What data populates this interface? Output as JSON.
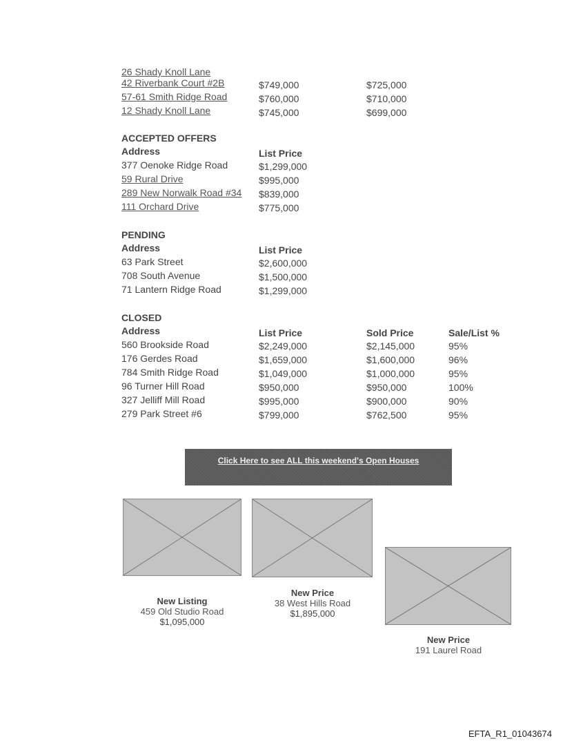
{
  "top_rows": [
    {
      "address": "26 Shady Knoll Lane",
      "link": true,
      "list": "",
      "sold": ""
    },
    {
      "address": "42 Riverbank Court #2B",
      "link": true,
      "list": "$749,000",
      "sold": "$725,000"
    },
    {
      "address": "57-61 Smith Ridge Road",
      "link": true,
      "list": "$760,000",
      "sold": "$710,000"
    },
    {
      "address": "12 Shady Knoll Lane",
      "link": true,
      "list": "$745,000",
      "sold": "$699,000"
    }
  ],
  "accepted": {
    "title": "ACCEPTED OFFERS",
    "headers": [
      "Address",
      "List Price"
    ],
    "rows": [
      {
        "address": "377 Oenoke Ridge Road",
        "link": false,
        "list": "$1,299,000"
      },
      {
        "address": "59 Rural Drive",
        "link": true,
        "list": "$995,000"
      },
      {
        "address": "289 New Norwalk Road #34",
        "link": true,
        "list": "$839,000"
      },
      {
        "address": "111 Orchard Drive",
        "link": true,
        "list": "$775,000"
      }
    ]
  },
  "pending": {
    "title": "PENDING",
    "headers": [
      "Address",
      "List Price"
    ],
    "rows": [
      {
        "address": "63 Park Street",
        "link": false,
        "list": "$2,600,000"
      },
      {
        "address": "708 South Avenue",
        "link": false,
        "list": "$1,500,000"
      },
      {
        "address": "71 Lantern Ridge Road",
        "link": false,
        "list": "$1,299,000"
      }
    ]
  },
  "closed": {
    "title": "CLOSED",
    "headers": [
      "Address",
      "List Price",
      "Sold Price",
      "Sale/List %"
    ],
    "rows": [
      {
        "address": "560 Brookside Road",
        "link": false,
        "list": "$2,249,000",
        "sold": "$2,145,000",
        "pct": "95%"
      },
      {
        "address": "176 Gerdes Road",
        "link": false,
        "list": "$1,659,000",
        "sold": "$1,600,000",
        "pct": "96%"
      },
      {
        "address": "784 Smith Ridge Road",
        "link": false,
        "list": "$1,049,000",
        "sold": "$1,000,000",
        "pct": "95%"
      },
      {
        "address": "96 Turner Hill Road",
        "link": false,
        "list": "$950,000",
        "sold": "$950,000",
        "pct": "100%"
      },
      {
        "address": "327 Jelliff Mill Road",
        "link": false,
        "list": "$995,000",
        "sold": "$900,000",
        "pct": "90%"
      },
      {
        "address": "279 Park Street #6",
        "link": false,
        "list": "$799,000",
        "sold": "$762,500",
        "pct": "95%"
      }
    ]
  },
  "open_houses_button": "Click Here to see ALL this weekend's Open Houses",
  "features": [
    {
      "label": "New Listing",
      "address": "459 Old Studio Road",
      "price": "$1,095,000"
    },
    {
      "label": "New Price",
      "address": "38 West Hills Road",
      "price": "$1,895,000"
    },
    {
      "label": "New Price",
      "address": "191 Laurel Road",
      "price": ""
    }
  ],
  "footer_id": "EFTA_R1_01043674"
}
